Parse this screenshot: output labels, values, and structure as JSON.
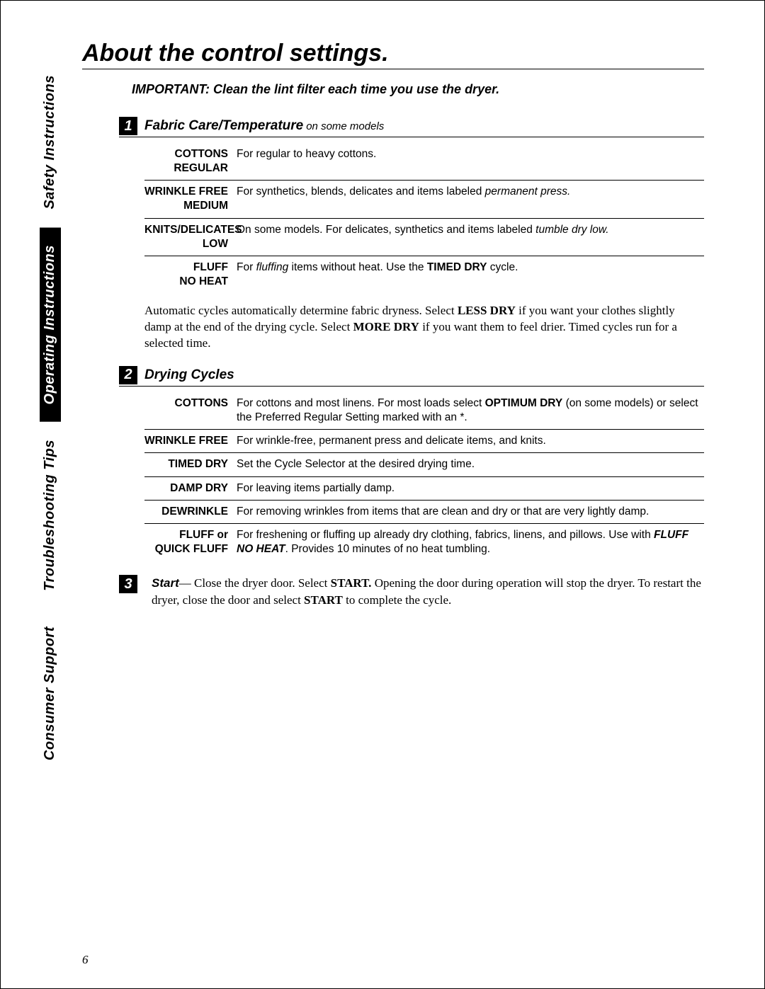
{
  "tabs": [
    {
      "label": "Safety Instructions",
      "style": "light"
    },
    {
      "label": "Operating Instructions",
      "style": "dark"
    },
    {
      "label": "Troubleshooting Tips",
      "style": "light"
    },
    {
      "label": "Consumer Support",
      "style": "light"
    }
  ],
  "title": "About the control settings.",
  "important": "IMPORTANT: Clean the lint filter each time you use the dryer.",
  "section1": {
    "num": "1",
    "title": "Fabric Care/Temperature",
    "note": "on some models",
    "rows": [
      {
        "label_html": "COTTONS<br>REGULAR",
        "desc_html": "For regular to heavy cottons."
      },
      {
        "label_html": "WRINKLE FREE<br>MEDIUM",
        "desc_html": "For synthetics, blends, delicates and items labeled <i>permanent press.</i>"
      },
      {
        "label_html": "KNITS/DELICATES<br>LOW",
        "desc_html": "On some models. For delicates, synthetics and items labeled <i>tumble dry low.</i>"
      },
      {
        "label_html": "FLUFF<br>NO HEAT",
        "desc_html": "For <i>fluffing</i> items without heat. Use the <b>TIMED DRY</b> cycle."
      }
    ],
    "para_html": "Automatic cycles automatically determine fabric dryness. Select <b>LESS DRY</b> if you want your clothes slightly damp at the end of the drying cycle. Select <b>MORE DRY</b> if you want them to feel drier. Timed cycles run for a selected time."
  },
  "section2": {
    "num": "2",
    "title": "Drying Cycles",
    "rows": [
      {
        "label_html": "COTTONS",
        "desc_html": "For cottons and most linens. For most loads select <b>OPTIMUM DRY</b> (on some models) or select the Preferred Regular Setting marked with an *."
      },
      {
        "label_html": "WRINKLE FREE",
        "desc_html": "For wrinkle-free, permanent press and delicate items, and knits."
      },
      {
        "label_html": "TIMED DRY",
        "desc_html": "Set the Cycle Selector at the desired drying time."
      },
      {
        "label_html": "DAMP DRY",
        "desc_html": "For leaving items partially damp."
      },
      {
        "label_html": "DEWRINKLE",
        "desc_html": "For removing wrinkles from items that are clean and dry or that are very lightly damp."
      },
      {
        "label_html": "FLUFF or QUICK FLUFF",
        "desc_html": "For freshening or fluffing up already dry clothing, fabrics, linens, and pillows. Use with <b><i>FLUFF NO HEAT</i></b>. Provides 10 minutes of no heat tumbling."
      }
    ]
  },
  "section3": {
    "num": "3",
    "lead": "Start",
    "text_html": "— Close the dryer door. Select <b>START.</b> Opening the door during operation will stop the dryer. To restart the dryer, close the door and select <b>START</b> to complete the cycle."
  },
  "page_number": "6"
}
